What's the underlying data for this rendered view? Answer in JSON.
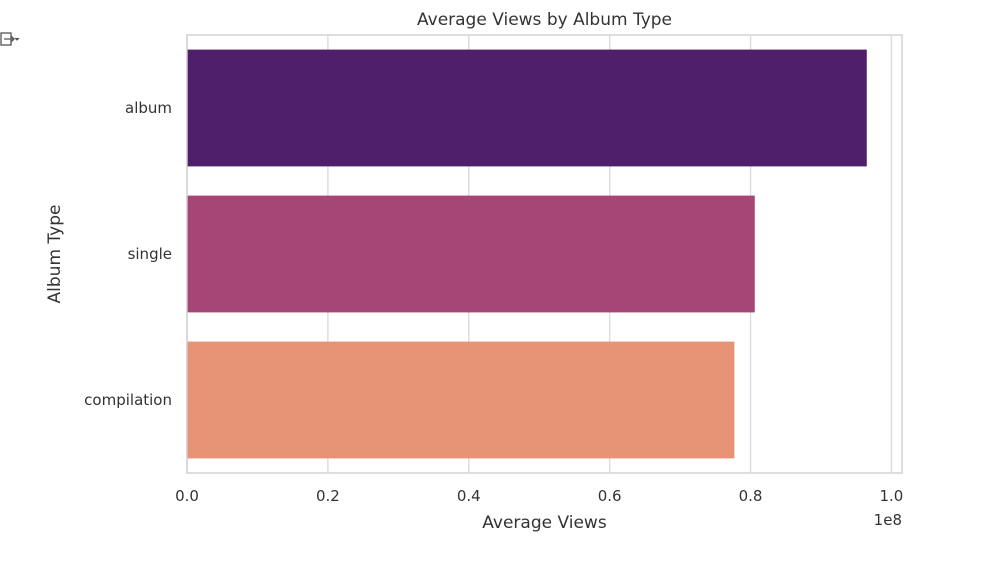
{
  "output_icon": "output-arrow-icon",
  "chart_data": {
    "type": "bar",
    "orientation": "horizontal",
    "title": "Average Views by Album Type",
    "xlabel": "Average Views",
    "ylabel": "Album Type",
    "x_offset_text": "1e8",
    "categories": [
      "album",
      "single",
      "compilation"
    ],
    "values": [
      96500000,
      80600000,
      77700000
    ],
    "colors": [
      "#4f1f6b",
      "#a64676",
      "#e69275"
    ],
    "xlim": [
      0,
      101500000
    ],
    "xticks": [
      0,
      20000000,
      40000000,
      60000000,
      80000000,
      100000000
    ],
    "xtick_labels": [
      "0.0",
      "0.2",
      "0.4",
      "0.6",
      "0.8",
      "1.0"
    ],
    "grid": true,
    "legend": "none"
  }
}
